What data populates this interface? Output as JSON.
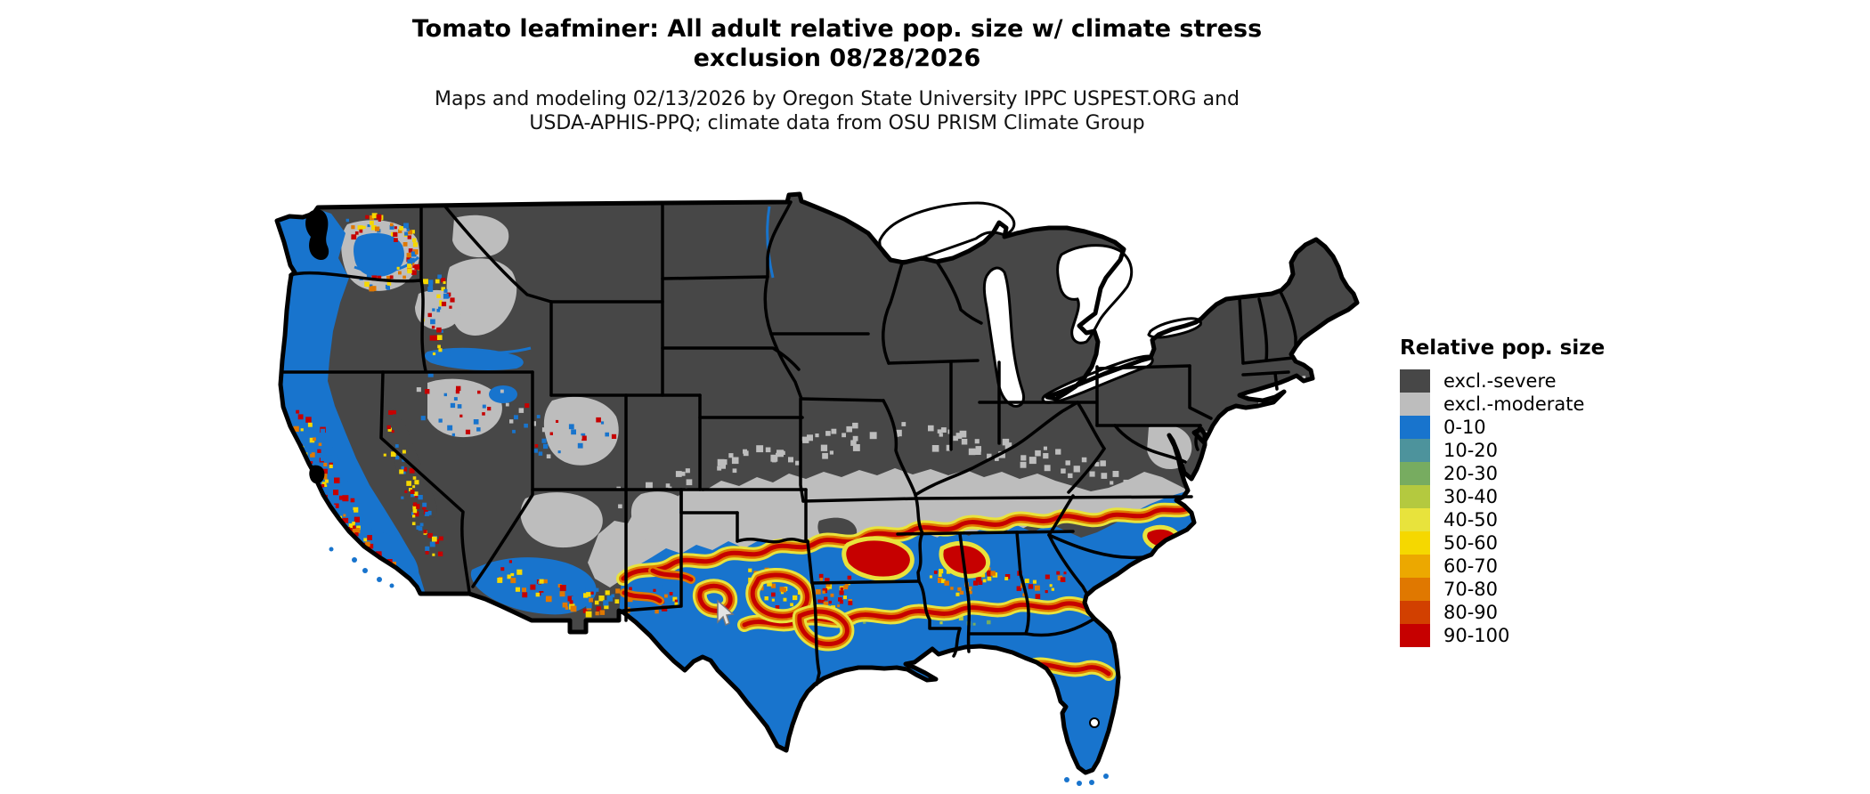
{
  "title": {
    "line1": "Tomato leafminer: All adult relative pop. size w/ climate stress",
    "line2": "exclusion 08/28/2026"
  },
  "subtitle": {
    "line1": "Maps and modeling 02/13/2026 by Oregon State University IPPC USPEST.ORG and",
    "line2": "USDA-APHIS-PPQ; climate data from OSU PRISM Climate Group"
  },
  "legend": {
    "title": "Relative pop. size",
    "items": [
      {
        "label": "excl.-severe",
        "color": "#474747"
      },
      {
        "label": "excl.-moderate",
        "color": "#BDBDBD"
      },
      {
        "label": "0-10",
        "color": "#1874CD"
      },
      {
        "label": "10-20",
        "color": "#4D939C"
      },
      {
        "label": "20-30",
        "color": "#77AC60"
      },
      {
        "label": "30-40",
        "color": "#B4C93F"
      },
      {
        "label": "40-50",
        "color": "#E8E33C"
      },
      {
        "label": "50-60",
        "color": "#F5D800"
      },
      {
        "label": "60-70",
        "color": "#ECA800"
      },
      {
        "label": "70-80",
        "color": "#E07800"
      },
      {
        "label": "80-90",
        "color": "#D24000"
      },
      {
        "label": "90-100",
        "color": "#C60000"
      }
    ]
  },
  "map": {
    "region_label": "Continental United States choropleth raster",
    "palette": {
      "boundary": "#000000",
      "water": "#FFFFFF",
      "background": "#FFFFFF",
      "cursor_fill": "#E3E3E3",
      "cursor_outline": "#777777"
    }
  }
}
